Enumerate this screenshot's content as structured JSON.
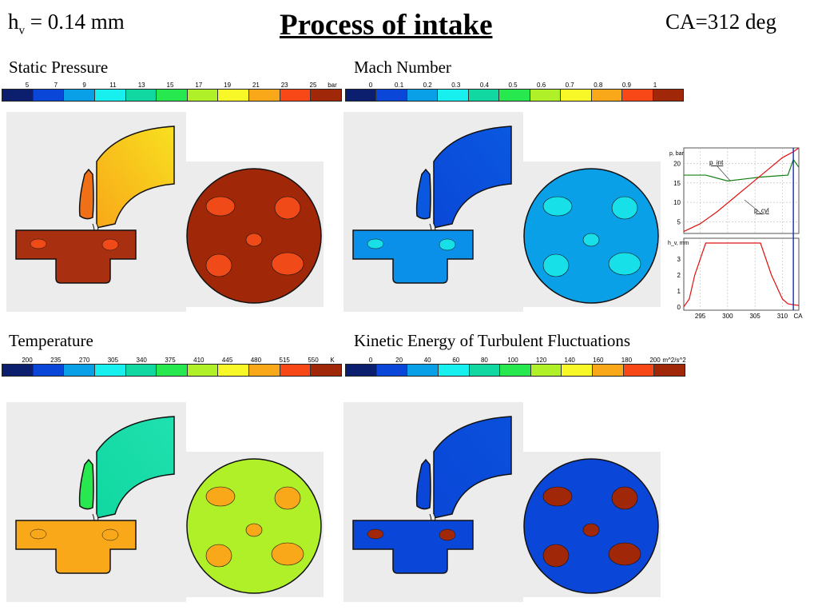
{
  "header": {
    "valve_lift_symbol": "h",
    "valve_lift_subscript": "v",
    "valve_lift_value": " = 0.14 mm",
    "title": "Process of intake",
    "crank_angle": "CA=312 deg"
  },
  "colormap": [
    "#0b1f6e",
    "#0a47d8",
    "#0aa0e8",
    "#18f0f0",
    "#10d8a0",
    "#28e850",
    "#b0f028",
    "#f8f828",
    "#f8a818",
    "#f84818",
    "#a02808"
  ],
  "panels": [
    {
      "label": "Static Pressure",
      "ticks": [
        "5",
        "7",
        "9",
        "11",
        "13",
        "15",
        "17",
        "19",
        "21",
        "23",
        "25"
      ],
      "unit": "bar",
      "fill": {
        "tee": "#a83010",
        "port_lo": "#f8a818",
        "port_hi": "#f8e020",
        "valve": "#f07018",
        "cyl": "#a02808",
        "blob": "#f04a18"
      }
    },
    {
      "label": "Mach Number",
      "ticks": [
        "0",
        "0.1",
        "0.2",
        "0.3",
        "0.4",
        "0.5",
        "0.6",
        "0.7",
        "0.8",
        "0.9",
        "1"
      ],
      "unit": "",
      "fill": {
        "tee": "#0a90e8",
        "port_lo": "#0a48d8",
        "port_hi": "#0a58e0",
        "valve": "#0a58e0",
        "cyl": "#0aa0e8",
        "blob": "#18e0e8"
      }
    },
    {
      "label": "Temperature",
      "ticks": [
        "200",
        "235",
        "270",
        "305",
        "340",
        "375",
        "410",
        "445",
        "480",
        "515",
        "550"
      ],
      "unit": "K",
      "fill": {
        "tee": "#f8a818",
        "port_lo": "#10d8a0",
        "port_hi": "#20e0b0",
        "valve": "#28e850",
        "cyl": "#b0f028",
        "blob": "#f8a818"
      }
    },
    {
      "label": "Kinetic Energy of Turbulent Fluctuations",
      "ticks": [
        "0",
        "20",
        "40",
        "60",
        "80",
        "100",
        "120",
        "140",
        "160",
        "180",
        "200"
      ],
      "unit": "m^2/s^2",
      "fill": {
        "tee": "#0a47d8",
        "port_lo": "#0a47d8",
        "port_hi": "#0a50dc",
        "valve": "#0a47d8",
        "cyl": "#0a47d8",
        "blob": "#a02808"
      }
    }
  ],
  "line_chart": {
    "type": "line",
    "x_axis_ticks": [
      "295",
      "300",
      "305",
      "310"
    ],
    "x_axis_label": "CA",
    "current_ca": 312,
    "top": {
      "ylabel": "p, bar",
      "y_ticks": [
        "20",
        "15",
        "10",
        "5"
      ],
      "ylim": [
        2,
        24
      ],
      "series": [
        {
          "name": "p_int",
          "color": "#108010",
          "x": [
            292,
            296,
            300,
            303,
            306,
            309,
            311,
            312,
            313
          ],
          "y": [
            17,
            17,
            15.5,
            16,
            16.5,
            16.8,
            17,
            21,
            19
          ]
        },
        {
          "name": "p_cyl",
          "color": "#e01010",
          "x": [
            292,
            295,
            298,
            301,
            304,
            307,
            310,
            312,
            313
          ],
          "y": [
            2.5,
            4.5,
            7.5,
            11,
            14.5,
            18,
            21.5,
            23,
            24
          ]
        }
      ]
    },
    "bottom": {
      "ylabel": "h_v, mm",
      "y_ticks": [
        "3",
        "2",
        "1",
        "0"
      ],
      "ylim": [
        0,
        4
      ],
      "series": [
        {
          "name": "h_v",
          "color": "#e01010",
          "x": [
            292,
            293,
            294,
            296,
            306,
            308,
            310,
            311,
            312,
            313
          ],
          "y": [
            0.02,
            0.5,
            2.0,
            4.0,
            4.0,
            2.0,
            0.5,
            0.2,
            0.14,
            0.1
          ]
        }
      ]
    }
  }
}
